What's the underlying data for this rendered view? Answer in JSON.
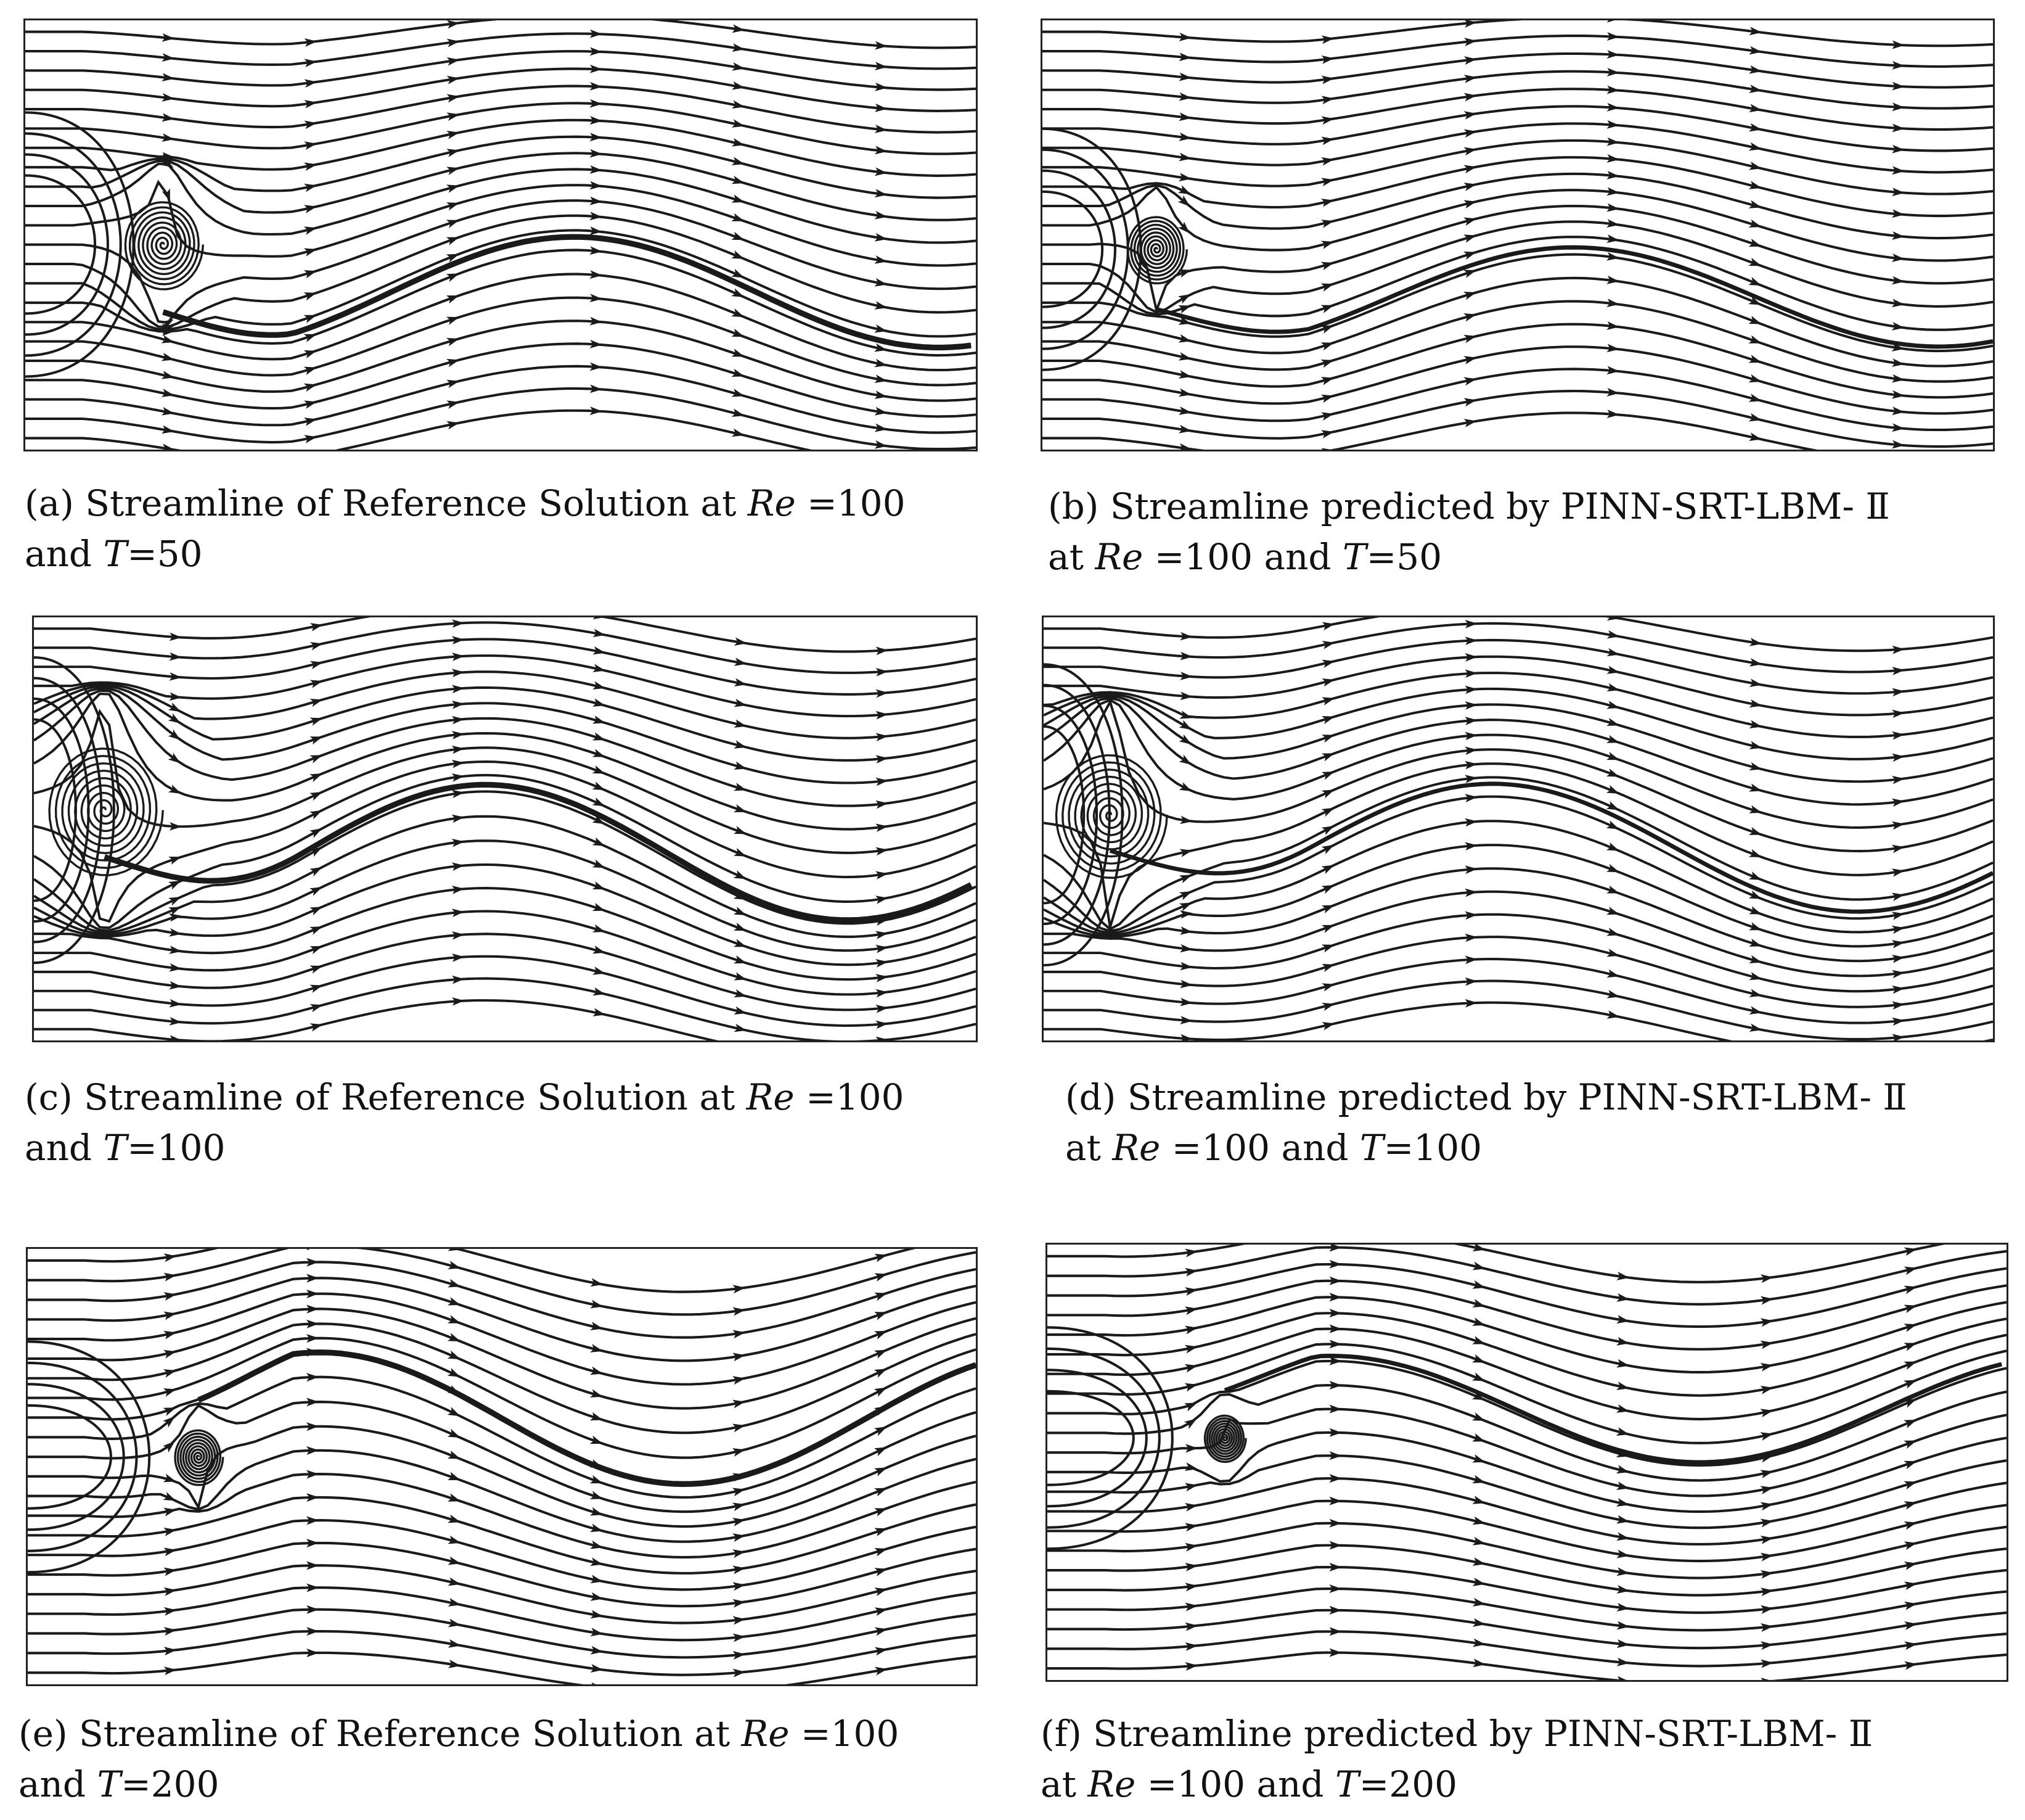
{
  "panels": [
    {
      "id": "a",
      "caption": {
        "line1": {
          "prefix": "(a) Streamline of Reference Solution at ",
          "re": "Re",
          "suffix": " =100"
        },
        "line2": {
          "prefix": "and ",
          "t": "T",
          "suffix": "=50"
        }
      }
    },
    {
      "id": "b",
      "caption": {
        "line1": {
          "prefix": "(b) Streamline predicted  by PINN-SRT-LBM- Ⅱ"
        },
        "line2": {
          "prefix": "at ",
          "re": "Re",
          "mid": " =100 and ",
          "t": "T",
          "suffix": "=50"
        }
      }
    },
    {
      "id": "c",
      "caption": {
        "line1": {
          "prefix": "(c) Streamline of Reference Solution at ",
          "re": "Re",
          "suffix": " =100"
        },
        "line2": {
          "prefix": "and ",
          "t": "T",
          "suffix": "=100"
        }
      }
    },
    {
      "id": "d",
      "caption": {
        "line1": {
          "prefix": "(d) Streamline predicted  by PINN-SRT-LBM- Ⅱ"
        },
        "line2": {
          "prefix": "at ",
          "re": "Re",
          "mid": " =100 and ",
          "t": "T",
          "suffix": "=100"
        }
      }
    },
    {
      "id": "e",
      "caption": {
        "line1": {
          "prefix": "(e) Streamline of Reference Solution at ",
          "re": "Re",
          "suffix": " =100"
        },
        "line2": {
          "prefix": "and ",
          "t": "T",
          "suffix": "=200"
        }
      }
    },
    {
      "id": "f",
      "caption": {
        "line1": {
          "prefix": "(f) Streamline predicted  by PINN-SRT-LBM- Ⅱ"
        },
        "line2": {
          "prefix": "at ",
          "re": "Re",
          "mid": " =100 and ",
          "t": "T",
          "suffix": "=200"
        }
      }
    }
  ]
}
